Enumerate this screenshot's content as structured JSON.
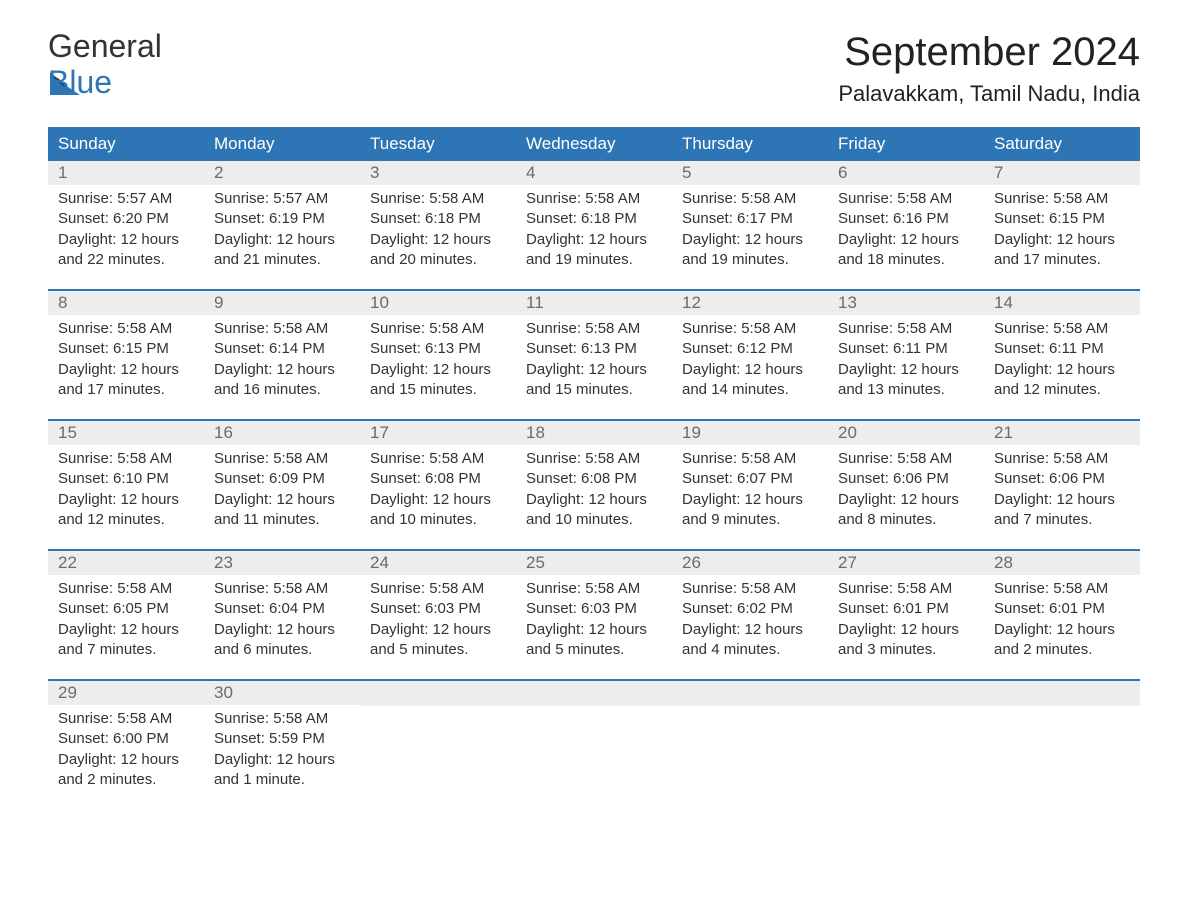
{
  "brand": {
    "part1": "General",
    "part2": "Blue"
  },
  "title": "September 2024",
  "location": "Palavakkam, Tamil Nadu, India",
  "colors": {
    "header_bg": "#2e75b6",
    "header_text": "#ffffff",
    "daynum_bg": "#ededed",
    "daynum_text": "#6b6b6b",
    "body_text": "#333333",
    "week_border": "#2e75b6",
    "brand_blue": "#2e75b6"
  },
  "day_headers": [
    "Sunday",
    "Monday",
    "Tuesday",
    "Wednesday",
    "Thursday",
    "Friday",
    "Saturday"
  ],
  "weeks": [
    [
      {
        "n": "1",
        "sunrise": "Sunrise: 5:57 AM",
        "sunset": "Sunset: 6:20 PM",
        "dl1": "Daylight: 12 hours",
        "dl2": "and 22 minutes."
      },
      {
        "n": "2",
        "sunrise": "Sunrise: 5:57 AM",
        "sunset": "Sunset: 6:19 PM",
        "dl1": "Daylight: 12 hours",
        "dl2": "and 21 minutes."
      },
      {
        "n": "3",
        "sunrise": "Sunrise: 5:58 AM",
        "sunset": "Sunset: 6:18 PM",
        "dl1": "Daylight: 12 hours",
        "dl2": "and 20 minutes."
      },
      {
        "n": "4",
        "sunrise": "Sunrise: 5:58 AM",
        "sunset": "Sunset: 6:18 PM",
        "dl1": "Daylight: 12 hours",
        "dl2": "and 19 minutes."
      },
      {
        "n": "5",
        "sunrise": "Sunrise: 5:58 AM",
        "sunset": "Sunset: 6:17 PM",
        "dl1": "Daylight: 12 hours",
        "dl2": "and 19 minutes."
      },
      {
        "n": "6",
        "sunrise": "Sunrise: 5:58 AM",
        "sunset": "Sunset: 6:16 PM",
        "dl1": "Daylight: 12 hours",
        "dl2": "and 18 minutes."
      },
      {
        "n": "7",
        "sunrise": "Sunrise: 5:58 AM",
        "sunset": "Sunset: 6:15 PM",
        "dl1": "Daylight: 12 hours",
        "dl2": "and 17 minutes."
      }
    ],
    [
      {
        "n": "8",
        "sunrise": "Sunrise: 5:58 AM",
        "sunset": "Sunset: 6:15 PM",
        "dl1": "Daylight: 12 hours",
        "dl2": "and 17 minutes."
      },
      {
        "n": "9",
        "sunrise": "Sunrise: 5:58 AM",
        "sunset": "Sunset: 6:14 PM",
        "dl1": "Daylight: 12 hours",
        "dl2": "and 16 minutes."
      },
      {
        "n": "10",
        "sunrise": "Sunrise: 5:58 AM",
        "sunset": "Sunset: 6:13 PM",
        "dl1": "Daylight: 12 hours",
        "dl2": "and 15 minutes."
      },
      {
        "n": "11",
        "sunrise": "Sunrise: 5:58 AM",
        "sunset": "Sunset: 6:13 PM",
        "dl1": "Daylight: 12 hours",
        "dl2": "and 15 minutes."
      },
      {
        "n": "12",
        "sunrise": "Sunrise: 5:58 AM",
        "sunset": "Sunset: 6:12 PM",
        "dl1": "Daylight: 12 hours",
        "dl2": "and 14 minutes."
      },
      {
        "n": "13",
        "sunrise": "Sunrise: 5:58 AM",
        "sunset": "Sunset: 6:11 PM",
        "dl1": "Daylight: 12 hours",
        "dl2": "and 13 minutes."
      },
      {
        "n": "14",
        "sunrise": "Sunrise: 5:58 AM",
        "sunset": "Sunset: 6:11 PM",
        "dl1": "Daylight: 12 hours",
        "dl2": "and 12 minutes."
      }
    ],
    [
      {
        "n": "15",
        "sunrise": "Sunrise: 5:58 AM",
        "sunset": "Sunset: 6:10 PM",
        "dl1": "Daylight: 12 hours",
        "dl2": "and 12 minutes."
      },
      {
        "n": "16",
        "sunrise": "Sunrise: 5:58 AM",
        "sunset": "Sunset: 6:09 PM",
        "dl1": "Daylight: 12 hours",
        "dl2": "and 11 minutes."
      },
      {
        "n": "17",
        "sunrise": "Sunrise: 5:58 AM",
        "sunset": "Sunset: 6:08 PM",
        "dl1": "Daylight: 12 hours",
        "dl2": "and 10 minutes."
      },
      {
        "n": "18",
        "sunrise": "Sunrise: 5:58 AM",
        "sunset": "Sunset: 6:08 PM",
        "dl1": "Daylight: 12 hours",
        "dl2": "and 10 minutes."
      },
      {
        "n": "19",
        "sunrise": "Sunrise: 5:58 AM",
        "sunset": "Sunset: 6:07 PM",
        "dl1": "Daylight: 12 hours",
        "dl2": "and 9 minutes."
      },
      {
        "n": "20",
        "sunrise": "Sunrise: 5:58 AM",
        "sunset": "Sunset: 6:06 PM",
        "dl1": "Daylight: 12 hours",
        "dl2": "and 8 minutes."
      },
      {
        "n": "21",
        "sunrise": "Sunrise: 5:58 AM",
        "sunset": "Sunset: 6:06 PM",
        "dl1": "Daylight: 12 hours",
        "dl2": "and 7 minutes."
      }
    ],
    [
      {
        "n": "22",
        "sunrise": "Sunrise: 5:58 AM",
        "sunset": "Sunset: 6:05 PM",
        "dl1": "Daylight: 12 hours",
        "dl2": "and 7 minutes."
      },
      {
        "n": "23",
        "sunrise": "Sunrise: 5:58 AM",
        "sunset": "Sunset: 6:04 PM",
        "dl1": "Daylight: 12 hours",
        "dl2": "and 6 minutes."
      },
      {
        "n": "24",
        "sunrise": "Sunrise: 5:58 AM",
        "sunset": "Sunset: 6:03 PM",
        "dl1": "Daylight: 12 hours",
        "dl2": "and 5 minutes."
      },
      {
        "n": "25",
        "sunrise": "Sunrise: 5:58 AM",
        "sunset": "Sunset: 6:03 PM",
        "dl1": "Daylight: 12 hours",
        "dl2": "and 5 minutes."
      },
      {
        "n": "26",
        "sunrise": "Sunrise: 5:58 AM",
        "sunset": "Sunset: 6:02 PM",
        "dl1": "Daylight: 12 hours",
        "dl2": "and 4 minutes."
      },
      {
        "n": "27",
        "sunrise": "Sunrise: 5:58 AM",
        "sunset": "Sunset: 6:01 PM",
        "dl1": "Daylight: 12 hours",
        "dl2": "and 3 minutes."
      },
      {
        "n": "28",
        "sunrise": "Sunrise: 5:58 AM",
        "sunset": "Sunset: 6:01 PM",
        "dl1": "Daylight: 12 hours",
        "dl2": "and 2 minutes."
      }
    ],
    [
      {
        "n": "29",
        "sunrise": "Sunrise: 5:58 AM",
        "sunset": "Sunset: 6:00 PM",
        "dl1": "Daylight: 12 hours",
        "dl2": "and 2 minutes."
      },
      {
        "n": "30",
        "sunrise": "Sunrise: 5:58 AM",
        "sunset": "Sunset: 5:59 PM",
        "dl1": "Daylight: 12 hours",
        "dl2": "and 1 minute."
      },
      {
        "n": "",
        "sunrise": "",
        "sunset": "",
        "dl1": "",
        "dl2": ""
      },
      {
        "n": "",
        "sunrise": "",
        "sunset": "",
        "dl1": "",
        "dl2": ""
      },
      {
        "n": "",
        "sunrise": "",
        "sunset": "",
        "dl1": "",
        "dl2": ""
      },
      {
        "n": "",
        "sunrise": "",
        "sunset": "",
        "dl1": "",
        "dl2": ""
      },
      {
        "n": "",
        "sunrise": "",
        "sunset": "",
        "dl1": "",
        "dl2": ""
      }
    ]
  ]
}
